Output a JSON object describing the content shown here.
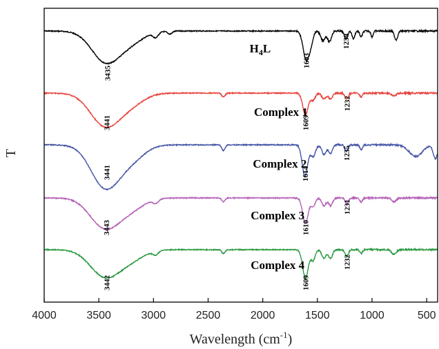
{
  "chart_data": {
    "type": "line",
    "title": "",
    "xlabel_main": "Wavelength (cm",
    "xlabel_sup": "-1",
    "xlabel_close": ")",
    "ylabel": "T",
    "xlim": [
      4000,
      400
    ],
    "x_ticks": [
      "4000",
      "3500",
      "3000",
      "2500",
      "2000",
      "1500",
      "1000",
      "500"
    ],
    "x_tick_values": [
      4000,
      3500,
      3000,
      2500,
      2000,
      1500,
      1000,
      500
    ],
    "series": [
      {
        "color": "#000000",
        "label_main": "H",
        "label_sub": "4",
        "label_tail": "L",
        "label_x": 2120,
        "baseline": 1.0,
        "bands": [
          [
            3435,
            1.6,
            130
          ],
          [
            3200,
            0.5,
            120
          ],
          [
            2980,
            0.25,
            25
          ],
          [
            2850,
            0.15,
            20
          ],
          [
            1603,
            1.45,
            28
          ],
          [
            1560,
            0.5,
            20
          ],
          [
            1450,
            0.5,
            20
          ],
          [
            1390,
            0.55,
            18
          ],
          [
            1239,
            0.4,
            15
          ],
          [
            1170,
            0.4,
            12
          ],
          [
            1100,
            0.3,
            12
          ],
          [
            1000,
            0.3,
            10
          ],
          [
            780,
            0.45,
            15
          ]
        ],
        "peaks": [
          {
            "x": 3435,
            "label": "3435"
          },
          {
            "x": 1603,
            "label": "1603"
          },
          {
            "x": 1239,
            "label": "1239"
          }
        ]
      },
      {
        "color": "#e8413a",
        "label_main": "Complex 1",
        "label_sub": "",
        "label_tail": "",
        "label_x": 2080,
        "baseline": 1.0,
        "bands": [
          [
            3441,
            1.7,
            135
          ],
          [
            3200,
            0.5,
            120
          ],
          [
            2360,
            0.2,
            15
          ],
          [
            1609,
            1.1,
            25
          ],
          [
            1540,
            0.35,
            20
          ],
          [
            1440,
            0.3,
            20
          ],
          [
            1380,
            0.3,
            18
          ],
          [
            1232,
            0.3,
            15
          ],
          [
            1100,
            0.2,
            12
          ],
          [
            800,
            0.15,
            20
          ]
        ],
        "peaks": [
          {
            "x": 3441,
            "label": "3441"
          },
          {
            "x": 1609,
            "label": "1609"
          },
          {
            "x": 1232,
            "label": "1232"
          }
        ]
      },
      {
        "color": "#4454a6",
        "label_main": "Complex 2",
        "label_sub": "",
        "label_tail": "",
        "label_x": 2090,
        "baseline": 1.0,
        "bands": [
          [
            3441,
            2.2,
            130
          ],
          [
            3200,
            0.7,
            120
          ],
          [
            2360,
            0.3,
            15
          ],
          [
            1614,
            1.6,
            25
          ],
          [
            1540,
            0.6,
            22
          ],
          [
            1440,
            0.5,
            20
          ],
          [
            1380,
            0.45,
            18
          ],
          [
            1235,
            0.35,
            15
          ],
          [
            1100,
            0.25,
            12
          ],
          [
            600,
            0.6,
            60
          ],
          [
            420,
            0.7,
            20
          ]
        ],
        "peaks": [
          {
            "x": 3441,
            "label": "3441"
          },
          {
            "x": 1614,
            "label": "1614"
          },
          {
            "x": 1235,
            "label": "1235"
          }
        ]
      },
      {
        "color": "#b45fb6",
        "label_main": "Complex 3",
        "label_sub": "",
        "label_tail": "",
        "label_x": 2110,
        "baseline": 1.0,
        "bands": [
          [
            3443,
            1.55,
            135
          ],
          [
            3200,
            0.5,
            120
          ],
          [
            2980,
            0.2,
            25
          ],
          [
            2360,
            0.2,
            15
          ],
          [
            1610,
            1.3,
            25
          ],
          [
            1540,
            0.45,
            20
          ],
          [
            1440,
            0.4,
            20
          ],
          [
            1380,
            0.4,
            18
          ],
          [
            1231,
            0.3,
            15
          ],
          [
            1100,
            0.2,
            12
          ],
          [
            800,
            0.2,
            20
          ]
        ],
        "peaks": [
          {
            "x": 3443,
            "label": "3443"
          },
          {
            "x": 1610,
            "label": "1610"
          },
          {
            "x": 1231,
            "label": "1231"
          }
        ]
      },
      {
        "color": "#2b9a42",
        "label_main": "Complex 4",
        "label_sub": "",
        "label_tail": "",
        "label_x": 2110,
        "baseline": 1.0,
        "bands": [
          [
            3442,
            1.4,
            135
          ],
          [
            3200,
            0.45,
            120
          ],
          [
            2980,
            0.2,
            25
          ],
          [
            2360,
            0.2,
            15
          ],
          [
            1609,
            1.5,
            25
          ],
          [
            1540,
            0.55,
            20
          ],
          [
            1440,
            0.45,
            20
          ],
          [
            1380,
            0.45,
            18
          ],
          [
            1232,
            0.35,
            15
          ],
          [
            1100,
            0.2,
            12
          ],
          [
            800,
            0.25,
            20
          ]
        ],
        "peaks": [
          {
            "x": 3442,
            "label": "3442"
          },
          {
            "x": 1609,
            "label": "1609"
          },
          {
            "x": 1232,
            "label": "1232"
          }
        ]
      }
    ]
  }
}
